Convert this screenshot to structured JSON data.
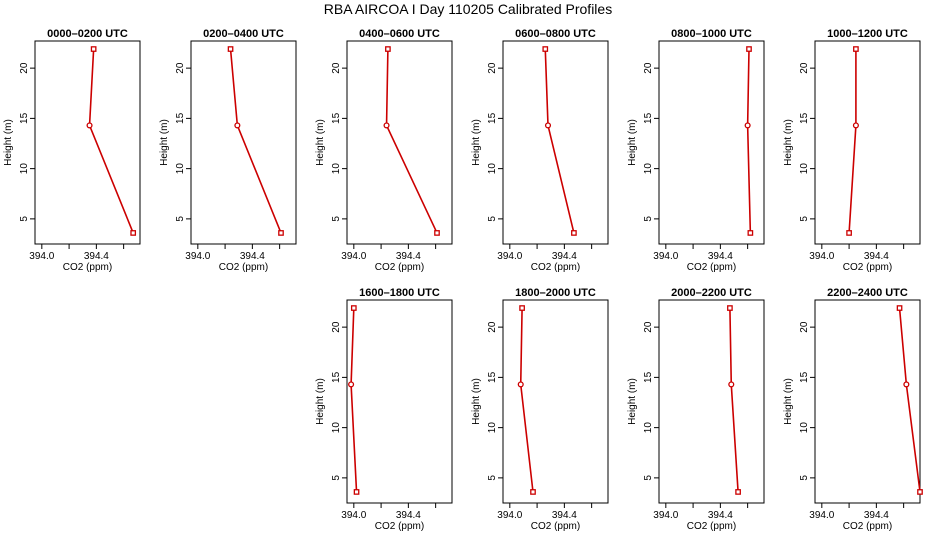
{
  "chart_data": {
    "type": "line",
    "title": "RBA AIRCOA I  Day 110205  Calibrated Profiles",
    "xlabel": "CO2 (ppm)",
    "ylabel": "Height (m)",
    "xlim": [
      393.95,
      394.72
    ],
    "ylim": [
      2.5,
      22.7
    ],
    "x_ticks": [
      394.0,
      394.2,
      394.4,
      394.6
    ],
    "x_tick_labels": [
      "394.0",
      "",
      "394.4",
      ""
    ],
    "y_ticks": [
      5,
      10,
      15,
      20
    ],
    "y_tick_labels": [
      "5",
      "10",
      "15",
      "20"
    ],
    "line_color": "#cc0000",
    "heights": [
      21.9,
      14.3,
      3.6
    ],
    "panels": [
      {
        "title": "0000–0200 UTC",
        "values": [
          394.38,
          394.35,
          394.67
        ]
      },
      {
        "title": "0200–0400 UTC",
        "values": [
          394.24,
          394.29,
          394.61
        ]
      },
      {
        "title": "0400–0600 UTC",
        "values": [
          394.25,
          394.24,
          394.61
        ]
      },
      {
        "title": "0600–0800 UTC",
        "values": [
          394.26,
          394.28,
          394.47
        ]
      },
      {
        "title": "0800–1000 UTC",
        "values": [
          394.61,
          394.6,
          394.62
        ]
      },
      {
        "title": "1000–1200 UTC",
        "values": [
          394.25,
          394.25,
          394.2
        ]
      },
      {
        "title": "1600–1800 UTC",
        "values": [
          394.0,
          393.98,
          394.02
        ]
      },
      {
        "title": "1800–2000 UTC",
        "values": [
          394.09,
          394.08,
          394.17
        ]
      },
      {
        "title": "2000–2200 UTC",
        "values": [
          394.47,
          394.48,
          394.53
        ]
      },
      {
        "title": "2200–2400 UTC",
        "values": [
          394.57,
          394.62,
          394.72
        ]
      }
    ]
  }
}
